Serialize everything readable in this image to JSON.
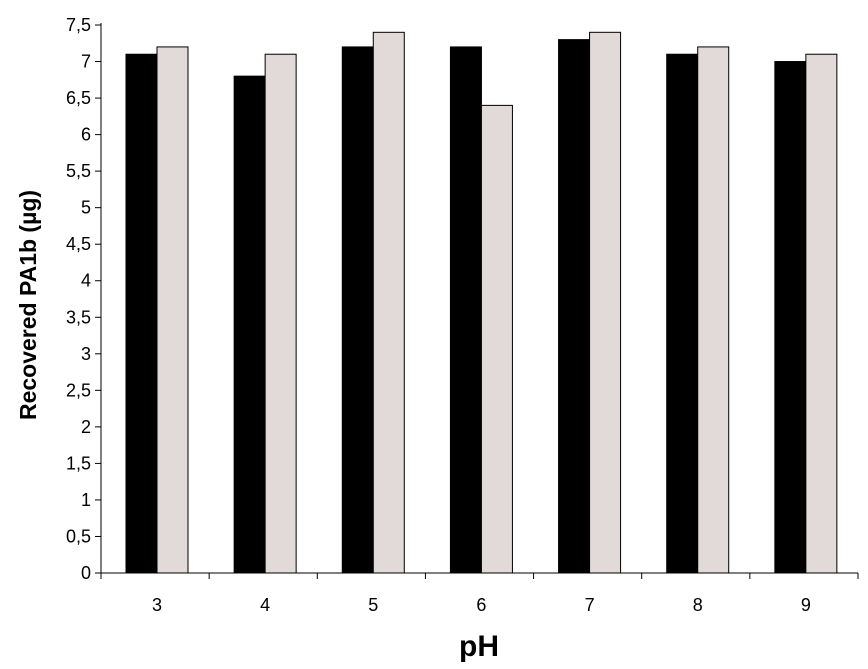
{
  "chart_data": {
    "type": "bar",
    "title": "",
    "xlabel": "pH",
    "ylabel": "Recovered PA1b (µg)",
    "categories": [
      "3",
      "4",
      "5",
      "6",
      "7",
      "8",
      "9"
    ],
    "series": [
      {
        "values": [
          7.1,
          6.8,
          7.2,
          7.2,
          7.3,
          7.1,
          7.0
        ],
        "color": "#000000"
      },
      {
        "values": [
          7.2,
          7.1,
          7.4,
          6.4,
          7.4,
          7.2,
          7.1
        ],
        "color": "#e2d9d9"
      }
    ],
    "ylim": [
      0,
      7.5
    ],
    "yticks": [
      "0",
      "0,5",
      "1",
      "1,5",
      "2",
      "2,5",
      "3",
      "3,5",
      "4",
      "4,5",
      "5",
      "5,5",
      "6",
      "6,5",
      "7",
      "7,5"
    ],
    "grid": false,
    "legend": "none"
  }
}
